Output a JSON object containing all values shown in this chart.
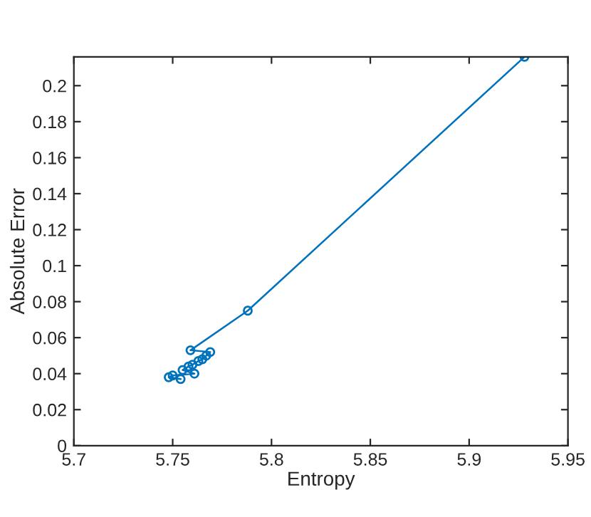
{
  "chart_data": {
    "type": "line",
    "xlabel": "Entropy",
    "ylabel": "Absolute Error",
    "x": [
      5.928,
      5.788,
      5.759,
      5.769,
      5.767,
      5.765,
      5.763,
      5.76,
      5.758,
      5.755,
      5.761,
      5.75,
      5.748,
      5.754
    ],
    "series": [
      {
        "color": "#0072bd",
        "values": [
          0.216,
          0.075,
          0.053,
          0.052,
          0.05,
          0.048,
          0.047,
          0.045,
          0.044,
          0.042,
          0.04,
          0.039,
          0.038,
          0.037
        ]
      }
    ],
    "xlim": [
      5.7,
      5.95
    ],
    "ylim": [
      0,
      0.216
    ],
    "xticks": [
      5.7,
      5.75,
      5.8,
      5.85,
      5.9,
      5.95
    ],
    "yticks": [
      0,
      0.02,
      0.04,
      0.06,
      0.08,
      0.1,
      0.12,
      0.14,
      0.16,
      0.18,
      0.2
    ],
    "marker": "circle",
    "line_style": "solid",
    "grid": false,
    "legend": false
  }
}
